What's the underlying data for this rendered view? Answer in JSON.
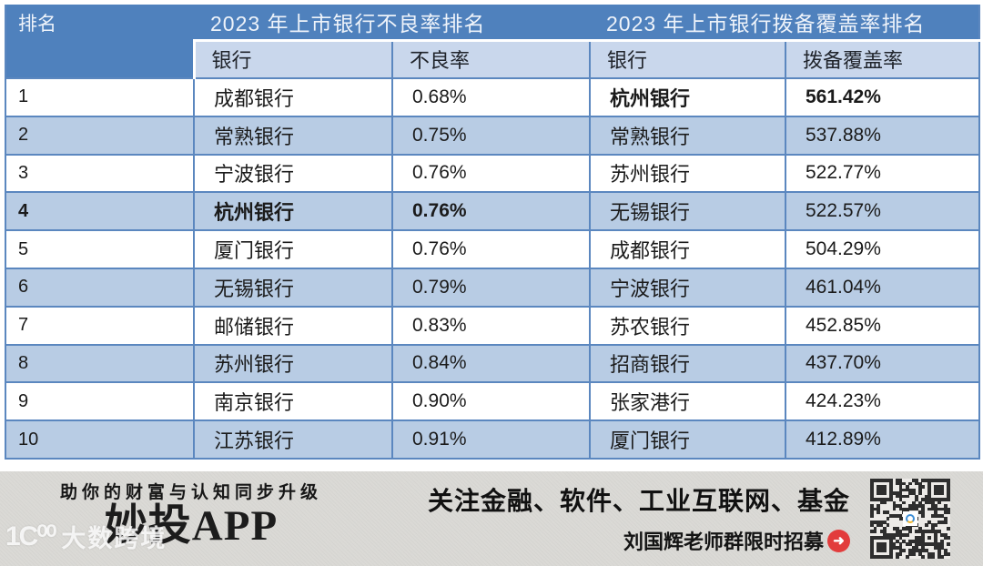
{
  "colors": {
    "header_blue": "#4f81bd",
    "subheader_blue": "#c9d7ec",
    "stripe_blue": "#b8cce4",
    "border_blue": "#5b87bf",
    "footer_bg": "#dad9d5",
    "accent_red": "#e23c3c"
  },
  "chart_data": {
    "type": "table",
    "rank_header": "排名",
    "group_titles": [
      "2023 年上市银行不良率排名",
      "2023 年上市银行拨备覆盖率排名"
    ],
    "sub_headers": [
      "银行",
      "不良率",
      "银行",
      "拨备覆盖率"
    ],
    "rows": [
      {
        "rank": "1",
        "npl_bank": "成都银行",
        "npl": "0.68%",
        "npl_bold": false,
        "cov_bank": "杭州银行",
        "coverage": "561.42%",
        "cov_bold": true
      },
      {
        "rank": "2",
        "npl_bank": "常熟银行",
        "npl": "0.75%",
        "npl_bold": false,
        "cov_bank": "常熟银行",
        "coverage": "537.88%",
        "cov_bold": false
      },
      {
        "rank": "3",
        "npl_bank": "宁波银行",
        "npl": "0.76%",
        "npl_bold": false,
        "cov_bank": "苏州银行",
        "coverage": "522.77%",
        "cov_bold": false
      },
      {
        "rank": "4",
        "npl_bank": "杭州银行",
        "npl": "0.76%",
        "npl_bold": true,
        "cov_bank": "无锡银行",
        "coverage": "522.57%",
        "cov_bold": false
      },
      {
        "rank": "5",
        "npl_bank": "厦门银行",
        "npl": "0.76%",
        "npl_bold": false,
        "cov_bank": "成都银行",
        "coverage": "504.29%",
        "cov_bold": false
      },
      {
        "rank": "6",
        "npl_bank": "无锡银行",
        "npl": "0.79%",
        "npl_bold": false,
        "cov_bank": "宁波银行",
        "coverage": "461.04%",
        "cov_bold": false
      },
      {
        "rank": "7",
        "npl_bank": "邮储银行",
        "npl": "0.83%",
        "npl_bold": false,
        "cov_bank": "苏农银行",
        "coverage": "452.85%",
        "cov_bold": false
      },
      {
        "rank": "8",
        "npl_bank": "苏州银行",
        "npl": "0.84%",
        "npl_bold": false,
        "cov_bank": "招商银行",
        "coverage": "437.70%",
        "cov_bold": false
      },
      {
        "rank": "9",
        "npl_bank": "南京银行",
        "npl": "0.90%",
        "npl_bold": false,
        "cov_bank": "张家港行",
        "coverage": "424.23%",
        "cov_bold": false
      },
      {
        "rank": "10",
        "npl_bank": "江苏银行",
        "npl": "0.91%",
        "npl_bold": false,
        "cov_bank": "厦门银行",
        "coverage": "412.89%",
        "cov_bold": false
      }
    ]
  },
  "header": {
    "rank_label": "排名",
    "group1_title": "2023 年上市银行不良率排名",
    "group2_title": "2023 年上市银行拨备覆盖率排名",
    "sub1": "银行",
    "sub2": "不良率",
    "sub3": "银行",
    "sub4": "拨备覆盖率"
  },
  "footer": {
    "tagline": "助你的财富与认知同步升级",
    "app_name": "妙投APP",
    "focus_line": "关注金融、软件、工业互联网、基金",
    "recruit_line": "刘国辉老师群限时招募",
    "arrow_glyph": "➜",
    "watermark_logo": "1C⁰⁰",
    "watermark_text": "大数跨境"
  }
}
